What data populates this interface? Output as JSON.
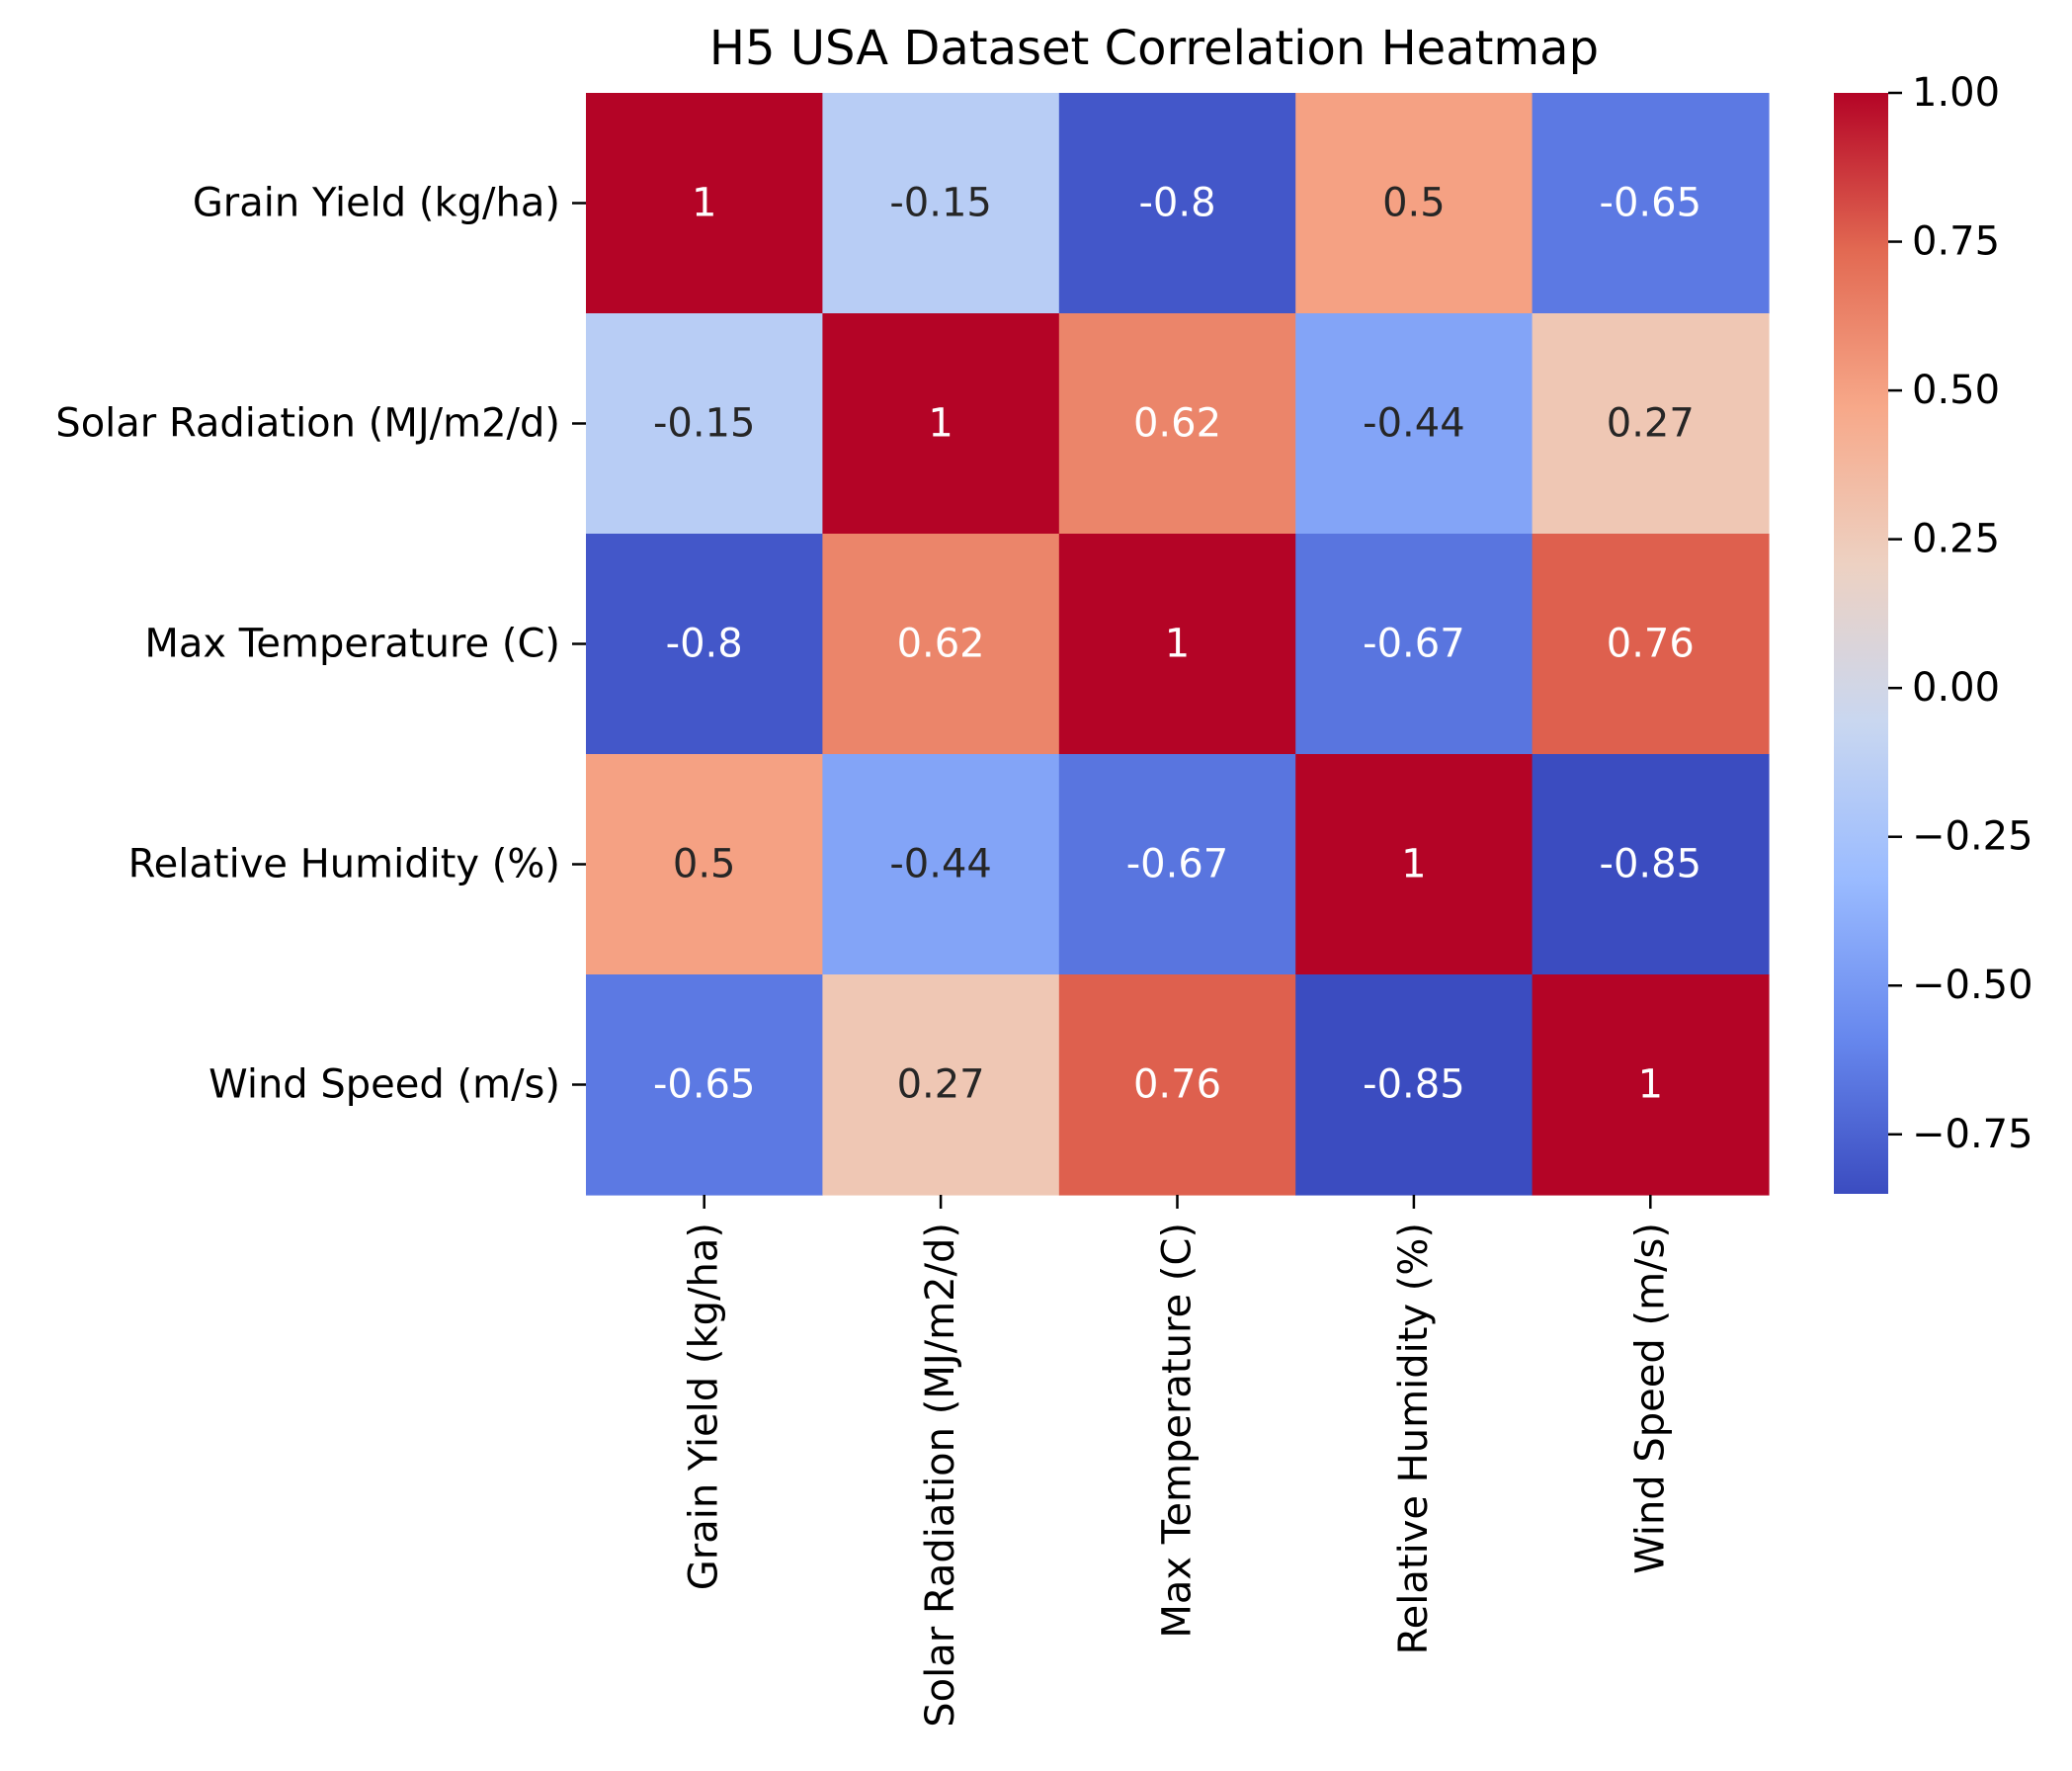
{
  "chart_data": {
    "type": "heatmap",
    "title": "H5 USA Dataset Correlation Heatmap",
    "xlabel": "",
    "ylabel": "",
    "row_labels": [
      "Grain Yield (kg/ha)",
      "Solar Radiation (MJ/m2/d)",
      "Max Temperature (C)",
      "Relative Humidity (%)",
      "Wind Speed (m/s)"
    ],
    "col_labels": [
      "Grain Yield (kg/ha)",
      "Solar Radiation (MJ/m2/d)",
      "Max Temperature (C)",
      "Relative Humidity (%)",
      "Wind Speed (m/s)"
    ],
    "values": [
      [
        1,
        -0.15,
        -0.8,
        0.5,
        -0.65
      ],
      [
        -0.15,
        1,
        0.62,
        -0.44,
        0.27
      ],
      [
        -0.8,
        0.62,
        1,
        -0.67,
        0.76
      ],
      [
        0.5,
        -0.44,
        -0.67,
        1,
        -0.85
      ],
      [
        -0.65,
        0.27,
        0.76,
        -0.85,
        1
      ]
    ],
    "annotations": [
      [
        "1",
        "-0.15",
        "-0.8",
        "0.5",
        "-0.65"
      ],
      [
        "-0.15",
        "1",
        "0.62",
        "-0.44",
        "0.27"
      ],
      [
        "-0.8",
        "0.62",
        "1",
        "-0.67",
        "0.76"
      ],
      [
        "0.5",
        "-0.44",
        "-0.67",
        "1",
        "-0.85"
      ],
      [
        "-0.65",
        "0.27",
        "0.76",
        "-0.85",
        "1"
      ]
    ],
    "colormap": "coolwarm",
    "colorbar": {
      "vmin": -0.85,
      "vmax": 1.0,
      "ticks": [
        1.0,
        0.75,
        0.5,
        0.25,
        0.0,
        -0.25,
        -0.5,
        -0.75
      ],
      "tick_labels": [
        "1.00",
        "0.75",
        "0.50",
        "0.25",
        "0.00",
        "−0.25",
        "−0.50",
        "−0.75"
      ],
      "location": "right"
    },
    "grid": false
  },
  "colors": {
    "cmap_stops": [
      "#3b4cc0",
      "#6788ee",
      "#9abbff",
      "#c9d7f0",
      "#edd1c2",
      "#f7a889",
      "#e26952",
      "#b40426"
    ],
    "text_dark": "#262626",
    "text_light": "#ffffff",
    "axis": "#000000"
  }
}
